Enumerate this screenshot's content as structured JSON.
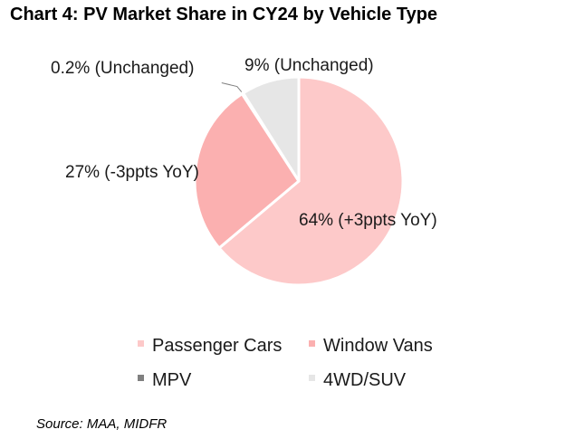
{
  "chart_title": "Chart 4: PV Market Share in CY24 by Vehicle Type",
  "source": "Source: MAA, MIDFR",
  "chart_data": {
    "type": "pie",
    "title": "Chart 4: PV Market Share in CY24 by Vehicle Type",
    "start_angle": "12 o'clock",
    "direction": "clockwise",
    "legend_position": "bottom",
    "slices": [
      {
        "name": "Passenger Cars",
        "value": 64,
        "label": "64% (+3ppts YoY)",
        "color": "#fdc9c9"
      },
      {
        "name": "Window Vans",
        "value": 27,
        "label": "27% (-3ppts YoY)",
        "color": "#fbb0b0"
      },
      {
        "name": "MPV",
        "value": 0.2,
        "label": "0.2% (Unchanged)",
        "color": "#808080"
      },
      {
        "name": "4WD/SUV",
        "value": 9,
        "label": "9% (Unchanged)",
        "color": "#e6e6e6"
      }
    ]
  }
}
